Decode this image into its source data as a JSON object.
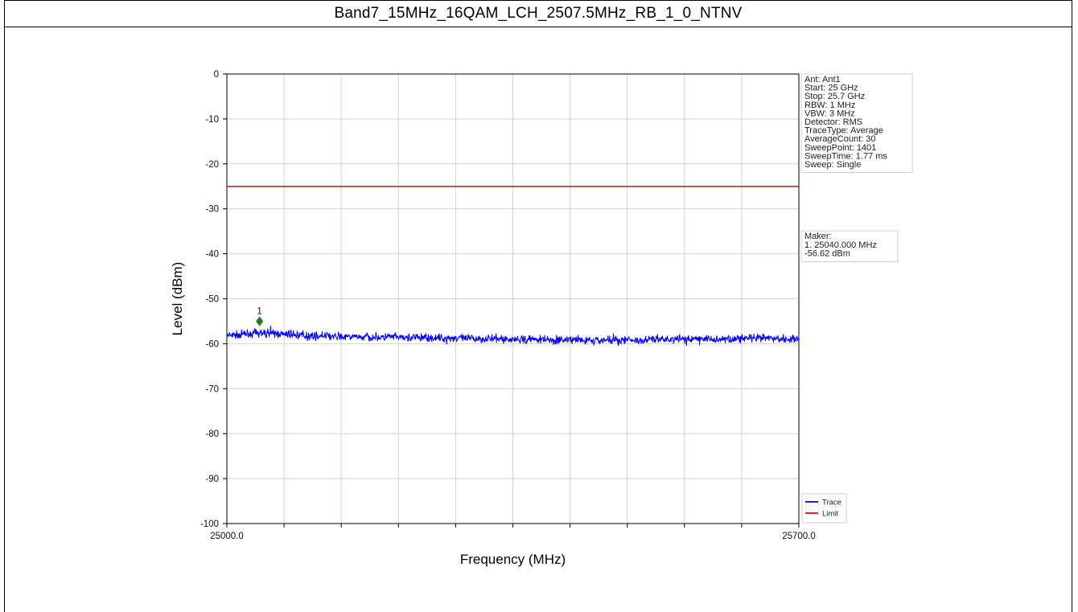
{
  "page": {
    "title": "Band7_15MHz_16QAM_LCH_2507.5MHz_RB_1_0_NTNV"
  },
  "chart_data": {
    "type": "line",
    "title": "",
    "xlabel": "Frequency (MHz)",
    "ylabel": "Level (dBm)",
    "xlim": [
      25000.0,
      25700.0
    ],
    "ylim": [
      -100,
      0
    ],
    "x_tick_labels": [
      "25000.0",
      "25700.0"
    ],
    "y_ticks": [
      0,
      -10,
      -20,
      -30,
      -40,
      -50,
      -60,
      -70,
      -80,
      -90,
      -100
    ],
    "grid": true,
    "series": [
      {
        "name": "Trace",
        "color": "#0000ff",
        "x": [
          25000,
          25020,
          25040,
          25060,
          25080,
          25100,
          25120,
          25140,
          25160,
          25180,
          25200,
          25220,
          25240,
          25260,
          25280,
          25300,
          25320,
          25340,
          25360,
          25380,
          25400,
          25420,
          25440,
          25460,
          25480,
          25500,
          25520,
          25540,
          25560,
          25580,
          25600,
          25620,
          25640,
          25660,
          25680,
          25700
        ],
        "y": [
          -58.3,
          -57.9,
          -57.6,
          -57.8,
          -58.0,
          -58.2,
          -58.3,
          -58.5,
          -58.4,
          -58.6,
          -58.5,
          -58.7,
          -58.6,
          -58.8,
          -58.7,
          -58.9,
          -58.9,
          -59.0,
          -59.1,
          -59.0,
          -59.2,
          -59.1,
          -59.3,
          -59.2,
          -59.1,
          -59.2,
          -59.1,
          -59.0,
          -59.0,
          -58.9,
          -59.0,
          -58.9,
          -58.8,
          -58.8,
          -58.9,
          -58.8
        ]
      },
      {
        "name": "Limit",
        "color": "#ff0000",
        "x": [
          25000,
          25700
        ],
        "y": [
          -25,
          -25
        ]
      }
    ],
    "marker": {
      "label": "1",
      "x": 25040.0,
      "y": -55.0,
      "color": "#1f7a1f"
    },
    "legend": {
      "position": "bottom-right",
      "entries": [
        "Trace",
        "Limit"
      ]
    },
    "info_box": [
      "Ant: Ant1",
      "Start: 25 GHz",
      "Stop: 25.7 GHz",
      "RBW: 1 MHz",
      "VBW: 3 MHz",
      "Detector: RMS",
      "TraceType: Average",
      "AverageCount: 30",
      "SweepPoint: 1401",
      "SweepTime: 1.77 ms",
      "Sweep: Single"
    ],
    "marker_box": [
      "Maker:",
      "1. 25040.000 MHz",
      "-56.62 dBm"
    ]
  }
}
